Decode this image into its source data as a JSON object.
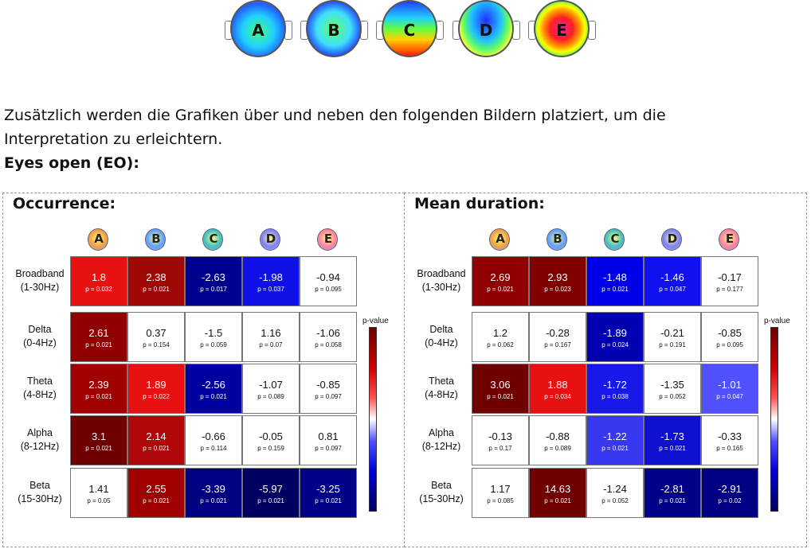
{
  "topomaps": [
    {
      "label": "A",
      "bg": "radial-gradient(circle at 50% 55%, #40ff80 0%, #20d0ff 40%, #2060ff 70%, #ff40ff 100%)"
    },
    {
      "label": "B",
      "bg": "radial-gradient(circle at 50% 50%, #60ff60 0%, #40e0ff 45%, #2040ff 75%, #ff40ff 100%)"
    },
    {
      "label": "C",
      "bg": "linear-gradient(to bottom, #2040ff 0%, #20d0ff 30%, #60ff40 50%, #ffd000 70%, #ff2000 100%)"
    },
    {
      "label": "D",
      "bg": "radial-gradient(ellipse at 50% 35%, #2030ff 0%, #20c0ff 40%, #60ff60 60%, #ffff40 75%, #ff20ff 100%)"
    },
    {
      "label": "E",
      "bg": "radial-gradient(circle at 50% 50%, #ff20a0 0%, #ff2020 30%, #ffa000 50%, #ffff00 62%, #40ff60 76%, #2040ff 90%, #101030 100%)"
    }
  ],
  "text": {
    "line1": "Zusätzlich werden die Grafiken über und neben den folgenden Bildern platziert, um die",
    "line2": "Interpretation zu erleichtern.",
    "heading": "Eyes open (EO):"
  },
  "legend_title": "p-value",
  "columns": [
    "A",
    "B",
    "C",
    "D",
    "E"
  ],
  "rows": [
    {
      "name": "Broadband",
      "range": "(1-30Hz)"
    },
    {
      "name": "Delta",
      "range": "(0-4Hz)"
    },
    {
      "name": "Theta",
      "range": "(4-8Hz)"
    },
    {
      "name": "Alpha",
      "range": "(8-12Hz)"
    },
    {
      "name": "Beta",
      "range": "(15-30Hz)"
    }
  ],
  "panels": [
    {
      "title": "Occurrence:",
      "values": [
        [
          "1.8",
          "2.38",
          "-2.63",
          "-1.98",
          "-0.94"
        ],
        [
          "2.61",
          "0.37",
          "-1.5",
          "1.16",
          "-1.06"
        ],
        [
          "2.39",
          "1.89",
          "-2.56",
          "-1.07",
          "-0.85"
        ],
        [
          "3.1",
          "2.14",
          "-0.66",
          "-0.05",
          "0.81"
        ],
        [
          "1.41",
          "2.55",
          "-3.39",
          "-5.97",
          "-3.25"
        ]
      ],
      "pvals": [
        [
          "p = 0.032",
          "p = 0.021",
          "p = 0.017",
          "p = 0.037",
          "p = 0.095"
        ],
        [
          "p = 0.021",
          "p = 0.154",
          "p = 0.059",
          "p = 0.07",
          "p = 0.058"
        ],
        [
          "p = 0.021",
          "p = 0.022",
          "p = 0.021",
          "p = 0.089",
          "p = 0.097"
        ],
        [
          "p = 0.021",
          "p = 0.021",
          "p = 0.114",
          "p = 0.159",
          "p = 0.097"
        ],
        [
          "p = 0.05",
          "p = 0.021",
          "p = 0.021",
          "p = 0.021",
          "p = 0.021"
        ]
      ],
      "colors": [
        [
          "#e81010",
          "#a00808",
          "#000090",
          "#1010e8",
          "#ffffff"
        ],
        [
          "#900000",
          "#ffffff",
          "#ffffff",
          "#ffffff",
          "#ffffff"
        ],
        [
          "#a00000",
          "#e81010",
          "#0000a0",
          "#ffffff",
          "#ffffff"
        ],
        [
          "#700000",
          "#b00808",
          "#ffffff",
          "#ffffff",
          "#ffffff"
        ],
        [
          "#ffffff",
          "#a00000",
          "#000080",
          "#000060",
          "#000088"
        ]
      ]
    },
    {
      "title": "Mean duration:",
      "values": [
        [
          "2.69",
          "2.93",
          "-1.48",
          "-1.46",
          "-0.17"
        ],
        [
          "1.2",
          "-0.28",
          "-1.89",
          "-0.21",
          "-0.85"
        ],
        [
          "3.06",
          "1.88",
          "-1.72",
          "-1.35",
          "-1.01"
        ],
        [
          "-0.13",
          "-0.88",
          "-1.22",
          "-1.73",
          "-0.33"
        ],
        [
          "1.17",
          "14.63",
          "-1.24",
          "-2.81",
          "-2.91"
        ]
      ],
      "pvals": [
        [
          "p = 0.021",
          "p = 0.023",
          "p = 0.021",
          "p = 0.047",
          "p = 0.177"
        ],
        [
          "p = 0.062",
          "p = 0.167",
          "p = 0.024",
          "p = 0.191",
          "p = 0.095"
        ],
        [
          "p = 0.021",
          "p = 0.034",
          "p = 0.038",
          "p = 0.052",
          "p = 0.047"
        ],
        [
          "p = 0.17",
          "p = 0.089",
          "p = 0.021",
          "p = 0.021",
          "p = 0.165"
        ],
        [
          "p = 0.085",
          "p = 0.021",
          "p = 0.052",
          "p = 0.021",
          "p = 0.02"
        ]
      ],
      "colors": [
        [
          "#900000",
          "#800000",
          "#0000e8",
          "#1010f0",
          "#ffffff"
        ],
        [
          "#ffffff",
          "#ffffff",
          "#0000b0",
          "#ffffff",
          "#ffffff"
        ],
        [
          "#700000",
          "#e81010",
          "#1818e8",
          "#ffffff",
          "#5050ff"
        ],
        [
          "#ffffff",
          "#ffffff",
          "#3838f0",
          "#1010d0",
          "#ffffff"
        ],
        [
          "#ffffff",
          "#700000",
          "#ffffff",
          "#000088",
          "#000080"
        ]
      ]
    }
  ]
}
